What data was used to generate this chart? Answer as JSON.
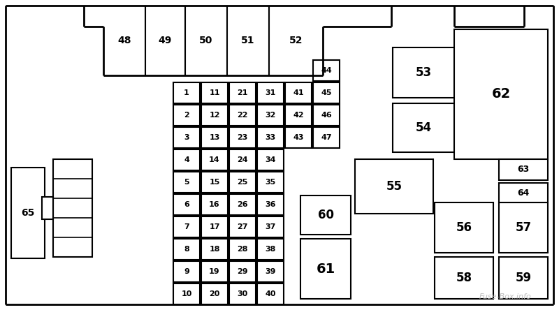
{
  "bg_color": "#ffffff",
  "border_color": "#000000",
  "fig_width": 8.0,
  "fig_height": 4.44,
  "watermark": "Fuse-Box.info",
  "watermark_color": "#b0b0b0",
  "small_fuses": [
    {
      "label": "1",
      "col": 0,
      "row": 0
    },
    {
      "label": "2",
      "col": 0,
      "row": 1
    },
    {
      "label": "3",
      "col": 0,
      "row": 2
    },
    {
      "label": "4",
      "col": 0,
      "row": 3
    },
    {
      "label": "5",
      "col": 0,
      "row": 4
    },
    {
      "label": "6",
      "col": 0,
      "row": 5
    },
    {
      "label": "7",
      "col": 0,
      "row": 6
    },
    {
      "label": "8",
      "col": 0,
      "row": 7
    },
    {
      "label": "9",
      "col": 0,
      "row": 8
    },
    {
      "label": "10",
      "col": 0,
      "row": 9
    },
    {
      "label": "11",
      "col": 1,
      "row": 0
    },
    {
      "label": "12",
      "col": 1,
      "row": 1
    },
    {
      "label": "13",
      "col": 1,
      "row": 2
    },
    {
      "label": "14",
      "col": 1,
      "row": 3
    },
    {
      "label": "15",
      "col": 1,
      "row": 4
    },
    {
      "label": "16",
      "col": 1,
      "row": 5
    },
    {
      "label": "17",
      "col": 1,
      "row": 6
    },
    {
      "label": "18",
      "col": 1,
      "row": 7
    },
    {
      "label": "19",
      "col": 1,
      "row": 8
    },
    {
      "label": "20",
      "col": 1,
      "row": 9
    },
    {
      "label": "21",
      "col": 2,
      "row": 0
    },
    {
      "label": "22",
      "col": 2,
      "row": 1
    },
    {
      "label": "23",
      "col": 2,
      "row": 2
    },
    {
      "label": "24",
      "col": 2,
      "row": 3
    },
    {
      "label": "25",
      "col": 2,
      "row": 4
    },
    {
      "label": "26",
      "col": 2,
      "row": 5
    },
    {
      "label": "27",
      "col": 2,
      "row": 6
    },
    {
      "label": "28",
      "col": 2,
      "row": 7
    },
    {
      "label": "29",
      "col": 2,
      "row": 8
    },
    {
      "label": "30",
      "col": 2,
      "row": 9
    },
    {
      "label": "31",
      "col": 3,
      "row": 0
    },
    {
      "label": "32",
      "col": 3,
      "row": 1
    },
    {
      "label": "33",
      "col": 3,
      "row": 2
    },
    {
      "label": "34",
      "col": 3,
      "row": 3
    },
    {
      "label": "35",
      "col": 3,
      "row": 4
    },
    {
      "label": "36",
      "col": 3,
      "row": 5
    },
    {
      "label": "37",
      "col": 3,
      "row": 6
    },
    {
      "label": "38",
      "col": 3,
      "row": 7
    },
    {
      "label": "39",
      "col": 3,
      "row": 8
    },
    {
      "label": "40",
      "col": 3,
      "row": 9
    },
    {
      "label": "41",
      "col": 4,
      "row": 0
    },
    {
      "label": "42",
      "col": 4,
      "row": 1
    },
    {
      "label": "43",
      "col": 4,
      "row": 2
    },
    {
      "label": "44",
      "col": 5,
      "row": -1
    },
    {
      "label": "45",
      "col": 5,
      "row": 0
    },
    {
      "label": "46",
      "col": 5,
      "row": 1
    },
    {
      "label": "47",
      "col": 5,
      "row": 2
    }
  ]
}
